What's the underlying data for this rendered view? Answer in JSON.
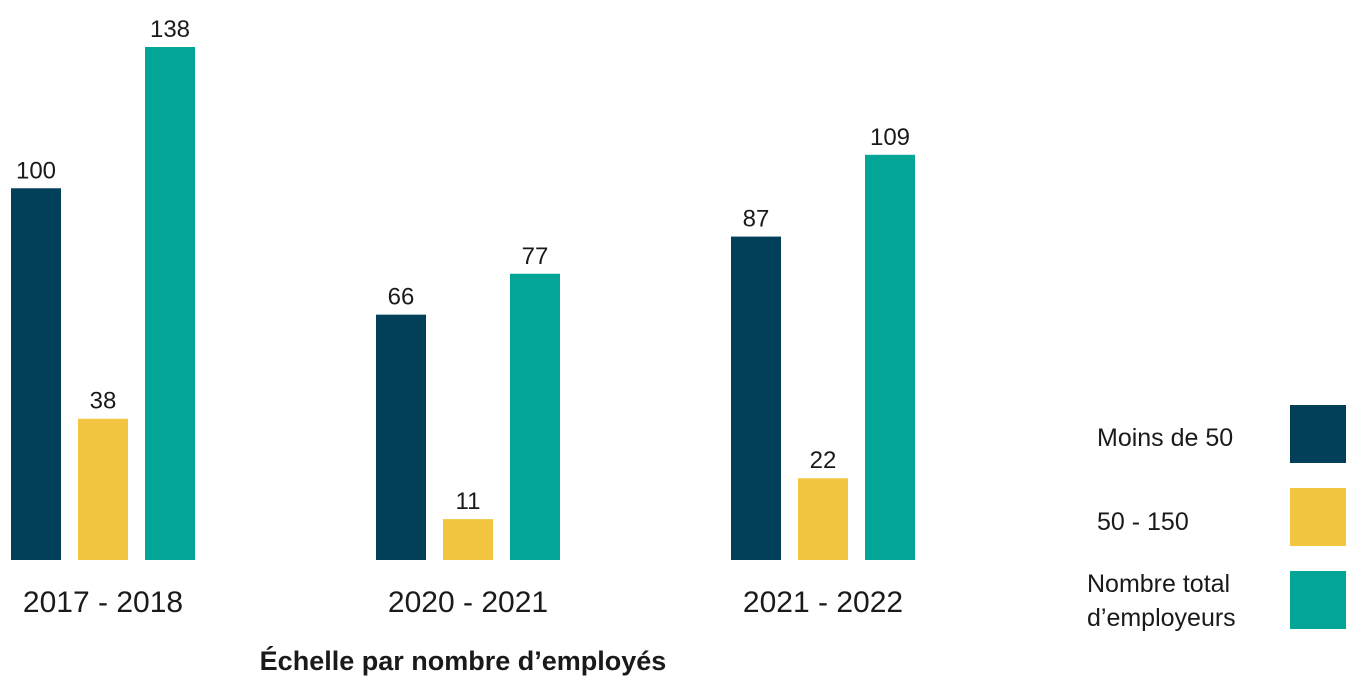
{
  "chart_data": {
    "type": "bar",
    "title": "",
    "xlabel": "Échelle par nombre d’employés",
    "ylabel": "",
    "ylim": [
      0,
      138
    ],
    "grid": false,
    "legend_position": "bottom-right",
    "categories": [
      "2017 - 2018",
      "2020 - 2021",
      "2021 - 2022"
    ],
    "series": [
      {
        "name": "Moins de 50",
        "values": [
          100,
          66,
          87
        ],
        "color": "#023f59"
      },
      {
        "name": "50 - 150",
        "values": [
          38,
          11,
          22
        ],
        "color": "#f2c641"
      },
      {
        "name": "Nombre total d’employeurs",
        "legend_lines": [
          "Nombre total",
          "d’employeurs"
        ],
        "values": [
          138,
          77,
          109
        ],
        "color": "#02a596"
      }
    ]
  }
}
